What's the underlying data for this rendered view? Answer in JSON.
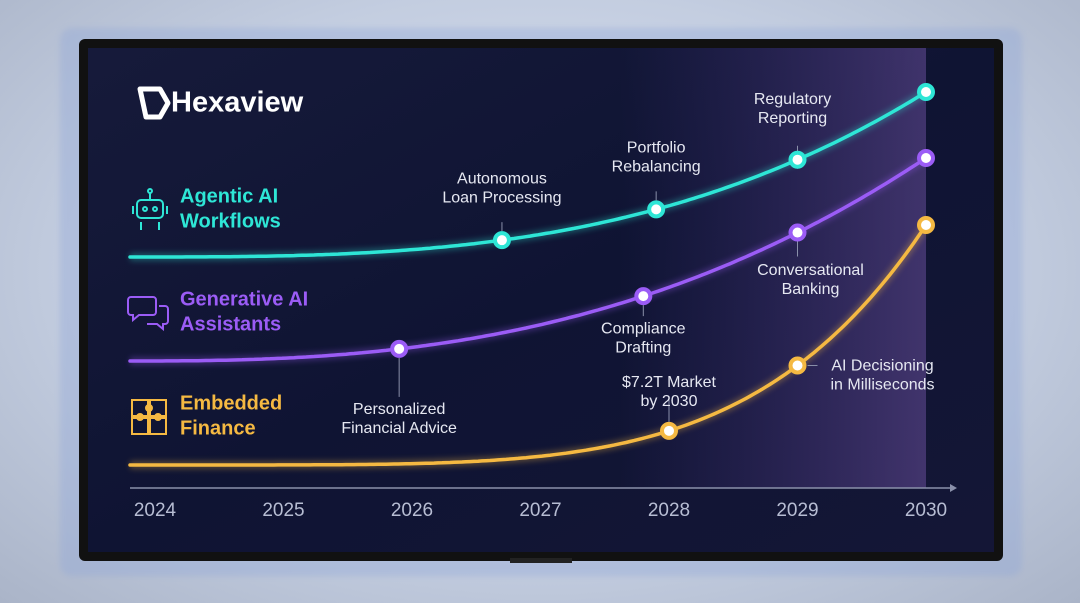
{
  "brand": "Hexaview",
  "lanes": [
    {
      "name": [
        "Agentic AI",
        "Workflows"
      ],
      "color": "#2ee6d6",
      "milestones": [
        {
          "year": 2026.7,
          "label": [
            "Autonomous",
            "Loan Processing"
          ]
        },
        {
          "year": 2027.9,
          "label": [
            "Portfolio",
            "Rebalancing"
          ]
        },
        {
          "year": 2029.0,
          "label": [
            "Regulatory",
            "Reporting"
          ]
        }
      ]
    },
    {
      "name": [
        "Generative AI",
        "Assistants"
      ],
      "color": "#9b5cf6",
      "milestones": [
        {
          "year": 2025.9,
          "label": [
            "Personalized",
            "Financial Advice"
          ]
        },
        {
          "year": 2027.8,
          "label": [
            "Compliance",
            "Drafting"
          ]
        },
        {
          "year": 2029.0,
          "label": [
            "Conversational",
            "Banking"
          ]
        }
      ]
    },
    {
      "name": [
        "Embedded",
        "Finance"
      ],
      "color": "#f5b942",
      "milestones": [
        {
          "year": 2028.0,
          "label": [
            "$7.2T Market",
            "by 2030"
          ]
        },
        {
          "year": 2029.0,
          "label": [
            "AI Decisioning",
            "in Milliseconds"
          ]
        }
      ]
    }
  ],
  "axis": {
    "years": [
      2024,
      2025,
      2026,
      2027,
      2028,
      2029,
      2030
    ]
  }
}
